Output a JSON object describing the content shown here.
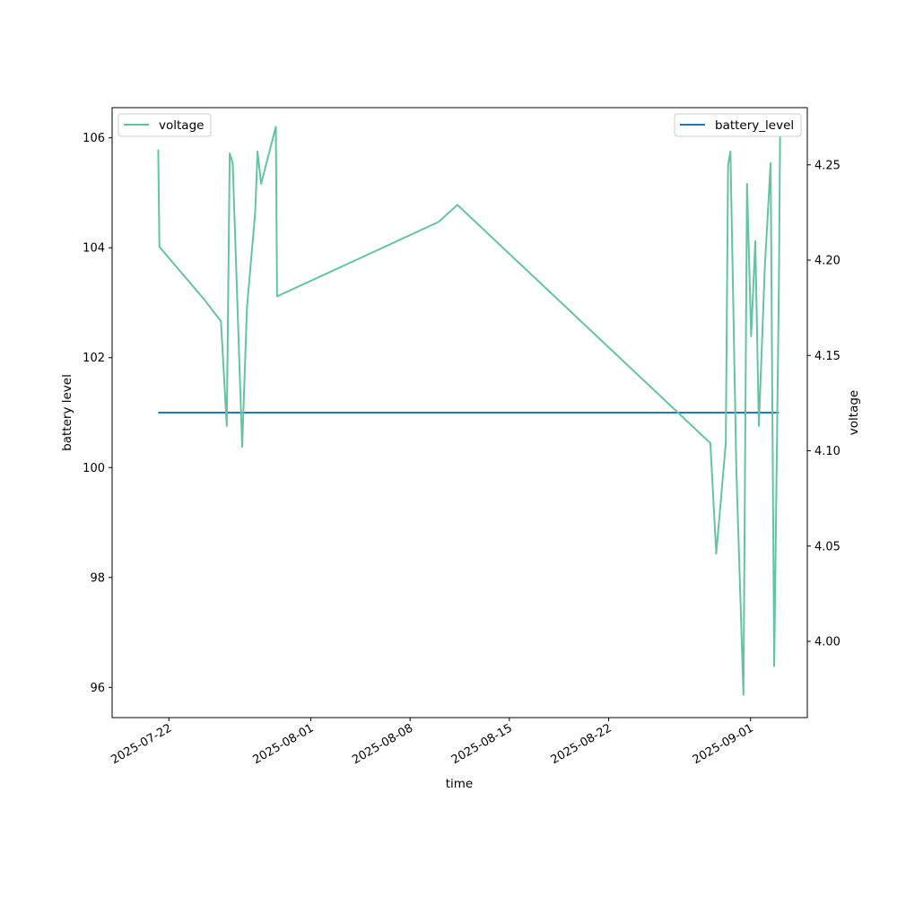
{
  "chart_data": {
    "type": "line",
    "xlabel": "time",
    "ylabel_left": "battery level",
    "ylabel_right": "voltage",
    "x_ticks": [
      "2025-07-22",
      "2025-08-01",
      "2025-08-08",
      "2025-08-15",
      "2025-08-22",
      "2025-09-01"
    ],
    "y_left_ticks": [
      96,
      98,
      100,
      102,
      104,
      106
    ],
    "y_right_ticks": [
      "4.00",
      "4.05",
      "4.10",
      "4.15",
      "4.20",
      "4.25"
    ],
    "x_range": [
      "2025-07-18",
      "2025-09-05"
    ],
    "y_left_range": [
      95.45,
      106.55
    ],
    "y_right_range": [
      3.96,
      4.28
    ],
    "grid": false,
    "series": [
      {
        "name": "battery_level",
        "axis": "left",
        "color": "#1f77b4",
        "legend": "top-right",
        "points": [
          [
            "2025-07-21 06:00",
            101.0
          ],
          [
            "2025-09-03 00:00",
            101.0
          ]
        ]
      },
      {
        "name": "voltage",
        "axis": "right",
        "color": "#66c2a5",
        "legend": "top-left",
        "points": [
          [
            "2025-07-21 06:00",
            4.258
          ],
          [
            "2025-07-21 08:00",
            4.207
          ],
          [
            "2025-07-24 10:00",
            4.18
          ],
          [
            "2025-07-25 16:00",
            4.168
          ],
          [
            "2025-07-26 02:00",
            4.113
          ],
          [
            "2025-07-26 07:00",
            4.256
          ],
          [
            "2025-07-26 12:00",
            4.251
          ],
          [
            "2025-07-27 04:00",
            4.102
          ],
          [
            "2025-07-27 12:00",
            4.175
          ],
          [
            "2025-07-28 02:00",
            4.225
          ],
          [
            "2025-07-28 06:00",
            4.257
          ],
          [
            "2025-07-28 12:00",
            4.24
          ],
          [
            "2025-07-29 13:00",
            4.27
          ],
          [
            "2025-07-29 15:00",
            4.181
          ],
          [
            "2025-08-10 00:00",
            4.22
          ],
          [
            "2025-08-11 08:00",
            4.229
          ],
          [
            "2025-08-29 04:00",
            4.104
          ],
          [
            "2025-08-29 14:00",
            4.046
          ],
          [
            "2025-08-30 06:00",
            4.104
          ],
          [
            "2025-08-30 10:00",
            4.25
          ],
          [
            "2025-08-30 14:00",
            4.257
          ],
          [
            "2025-08-31 00:00",
            4.09
          ],
          [
            "2025-08-31 12:00",
            3.972
          ],
          [
            "2025-08-31 18:00",
            4.24
          ],
          [
            "2025-09-01 01:00",
            4.16
          ],
          [
            "2025-09-01 08:00",
            4.21
          ],
          [
            "2025-09-01 14:00",
            4.113
          ],
          [
            "2025-09-02 00:00",
            4.196
          ],
          [
            "2025-09-02 10:00",
            4.251
          ],
          [
            "2025-09-02 16:00",
            3.987
          ],
          [
            "2025-09-03 00:00",
            4.19
          ],
          [
            "2025-09-03 02:00",
            4.27
          ]
        ]
      }
    ]
  }
}
